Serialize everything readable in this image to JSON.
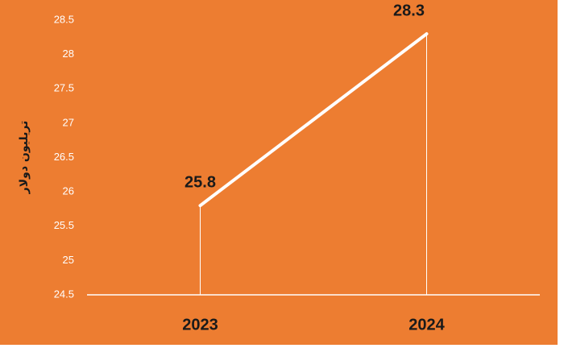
{
  "chart_data": {
    "type": "line",
    "y_label": "تريليون دولار",
    "categories": [
      "2023",
      "2024"
    ],
    "values": [
      25.8,
      28.3
    ],
    "color": "#ffffff",
    "background": "#ed7d31",
    "ylim": [
      24.5,
      28.5
    ],
    "yticks": [
      24.5,
      25,
      25.5,
      26,
      26.5,
      27,
      27.5,
      28,
      28.5
    ],
    "grid": false,
    "data_labels": true
  }
}
